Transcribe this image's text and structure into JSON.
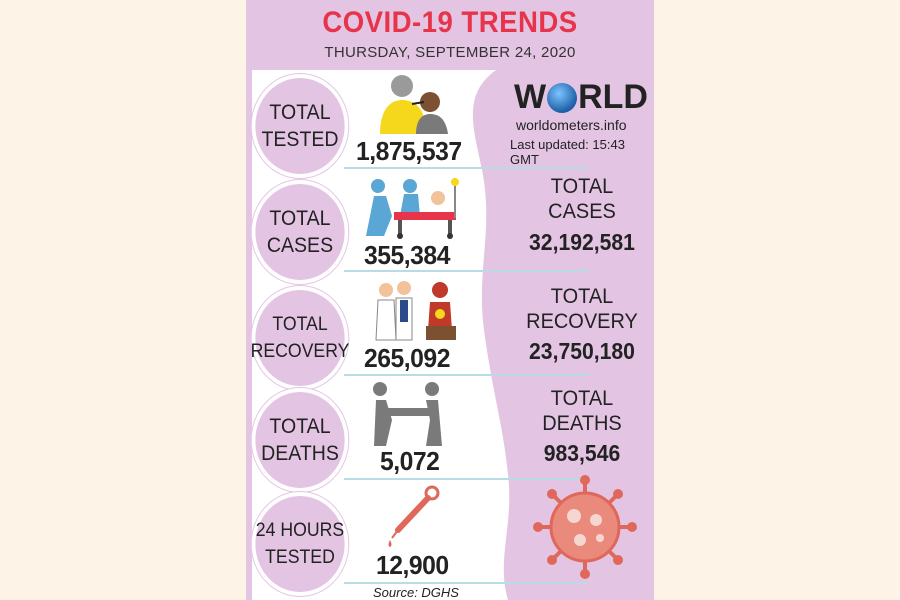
{
  "header": {
    "title": "COVID-19 TRENDS",
    "date": "THURSDAY, SEPTEMBER 24, 2020"
  },
  "local": [
    {
      "label_line1": "TOTAL",
      "label_line2": "TESTED",
      "value": "1,875,537",
      "icon": "testing-swab-icon"
    },
    {
      "label_line1": "TOTAL",
      "label_line2": "CASES",
      "value": "355,384",
      "icon": "hospital-stretcher-icon"
    },
    {
      "label_line1": "TOTAL",
      "label_line2": "RECOVERY",
      "value": "265,092",
      "icon": "doctors-recovery-icon"
    },
    {
      "label_line1": "TOTAL",
      "label_line2": "DEATHS",
      "value": "5,072",
      "icon": "carrying-stretcher-icon"
    },
    {
      "label_line1": "24 HOURS",
      "label_line2": "TESTED",
      "value": "12,900",
      "icon": "dropper-icon"
    }
  ],
  "world": {
    "logo_pre": "W",
    "logo_post": "RLD",
    "site": "worldometers.info",
    "updated": "Last updated: 15:43 GMT",
    "stats": [
      {
        "label_line1": "TOTAL",
        "label_line2": "CASES",
        "value": "32,192,581"
      },
      {
        "label_line1": "TOTAL",
        "label_line2": "RECOVERY",
        "value": "23,750,180"
      },
      {
        "label_line1": "TOTAL",
        "label_line2": "DEATHS",
        "value": "983,546"
      }
    ]
  },
  "source": "Source: DGHS",
  "colors": {
    "title": "#e8344b",
    "panel": "#e3c5e3",
    "accent_line": "#b9dbe6",
    "virus": "#e0685a",
    "yellow": "#f5d81b",
    "grey": "#7a7a7a",
    "blue": "#5aa6d4"
  }
}
